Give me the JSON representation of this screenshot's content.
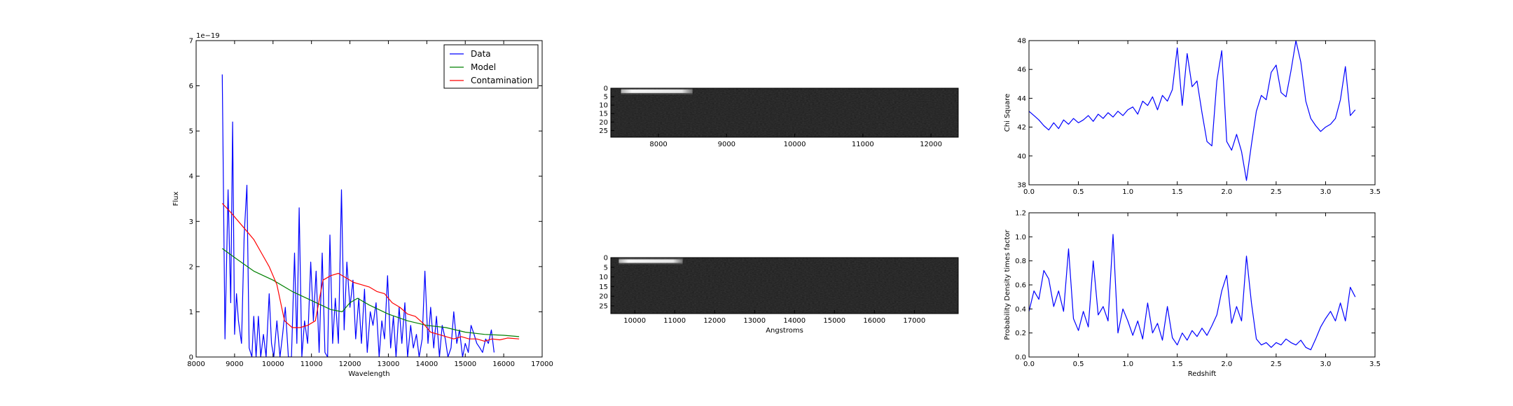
{
  "colors": {
    "data": "#0000ff",
    "model": "#008000",
    "contamination": "#ff0000",
    "axis": "#000000"
  },
  "chart_data": [
    {
      "id": "spectrum",
      "type": "line",
      "xlabel": "Wavelength",
      "ylabel": "Flux",
      "offset_text": "1e−19",
      "xlim": [
        8000,
        17000
      ],
      "ylim": [
        0,
        7
      ],
      "xticks": [
        8000,
        9000,
        10000,
        11000,
        12000,
        13000,
        14000,
        15000,
        16000,
        17000
      ],
      "yticks": [
        0,
        1,
        2,
        3,
        4,
        5,
        6,
        7
      ],
      "grid": false,
      "legend": {
        "position": "top-right",
        "entries": [
          "Data",
          "Model",
          "Contamination"
        ]
      },
      "series": [
        {
          "name": "Data",
          "color": "#0000ff",
          "x": [
            8680,
            8750,
            8830,
            8900,
            8950,
            9000,
            9050,
            9100,
            9180,
            9250,
            9320,
            9380,
            9450,
            9500,
            9560,
            9620,
            9680,
            9750,
            9820,
            9900,
            9960,
            10020,
            10100,
            10180,
            10250,
            10320,
            10400,
            10480,
            10560,
            10620,
            10680,
            10750,
            10820,
            10900,
            10980,
            11050,
            11120,
            11200,
            11280,
            11350,
            11420,
            11480,
            11550,
            11620,
            11700,
            11780,
            11850,
            11920,
            12000,
            12080,
            12150,
            12230,
            12300,
            12380,
            12450,
            12530,
            12600,
            12680,
            12760,
            12830,
            12900,
            12980,
            13060,
            13130,
            13200,
            13280,
            13350,
            13430,
            13500,
            13580,
            13650,
            13730,
            13800,
            13880,
            13950,
            14030,
            14100,
            14180,
            14250,
            14330,
            14400,
            14480,
            14550,
            14630,
            14700,
            14780,
            14850,
            14930,
            15000,
            15080,
            15150,
            15230,
            15300,
            15380,
            15450,
            15530,
            15600,
            15680,
            15750
          ],
          "y": [
            6.25,
            0.4,
            3.7,
            1.2,
            5.2,
            0.5,
            1.4,
            0.8,
            0.3,
            2.7,
            3.8,
            0.2,
            0.0,
            0.9,
            0.0,
            0.9,
            0.0,
            0.5,
            0.0,
            1.4,
            0.3,
            0.0,
            0.8,
            0.0,
            0.5,
            1.1,
            0.0,
            0.0,
            2.3,
            0.3,
            3.3,
            0.0,
            0.8,
            0.3,
            2.1,
            0.8,
            1.9,
            0.1,
            2.3,
            0.1,
            0.0,
            2.7,
            0.3,
            1.3,
            0.3,
            3.7,
            0.6,
            2.1,
            1.1,
            1.7,
            0.4,
            1.3,
            0.3,
            1.5,
            0.1,
            1.0,
            0.7,
            1.2,
            0.0,
            0.8,
            0.4,
            1.8,
            0.2,
            0.9,
            0.0,
            1.1,
            0.3,
            1.2,
            0.0,
            0.7,
            0.2,
            0.5,
            0.0,
            0.4,
            1.9,
            0.3,
            1.1,
            0.2,
            0.9,
            0.0,
            0.7,
            0.4,
            0.0,
            0.2,
            1.0,
            0.3,
            0.6,
            0.0,
            0.3,
            0.1,
            0.7,
            0.5,
            0.3,
            0.2,
            0.1,
            0.4,
            0.3,
            0.6,
            0.1
          ]
        },
        {
          "name": "Model",
          "color": "#008000",
          "x": [
            8680,
            9000,
            9500,
            10000,
            10500,
            11000,
            11500,
            11800,
            12000,
            12200,
            12500,
            13000,
            13500,
            14000,
            14500,
            15000,
            15500,
            16000,
            16400
          ],
          "y": [
            2.4,
            2.2,
            1.9,
            1.7,
            1.45,
            1.25,
            1.05,
            1.0,
            1.2,
            1.3,
            1.15,
            0.95,
            0.8,
            0.7,
            0.65,
            0.55,
            0.5,
            0.48,
            0.45
          ]
        },
        {
          "name": "Contamination",
          "color": "#ff0000",
          "x": [
            8680,
            8900,
            9100,
            9300,
            9500,
            9700,
            9900,
            10100,
            10300,
            10500,
            10700,
            10900,
            11100,
            11300,
            11500,
            11700,
            11900,
            12100,
            12300,
            12500,
            12700,
            12900,
            13100,
            13300,
            13500,
            13700,
            13900,
            14100,
            14300,
            14500,
            14700,
            14900,
            15100,
            15300,
            15500,
            15700,
            15900,
            16100,
            16400
          ],
          "y": [
            3.4,
            3.2,
            3.0,
            2.8,
            2.6,
            2.3,
            2.0,
            1.6,
            0.8,
            0.65,
            0.65,
            0.7,
            0.8,
            1.7,
            1.8,
            1.85,
            1.75,
            1.65,
            1.6,
            1.55,
            1.45,
            1.4,
            1.2,
            1.1,
            0.95,
            0.9,
            0.75,
            0.55,
            0.5,
            0.45,
            0.4,
            0.45,
            0.4,
            0.4,
            0.35,
            0.4,
            0.38,
            0.42,
            0.4
          ]
        }
      ]
    },
    {
      "id": "image-top",
      "type": "heatmap",
      "xlabel": "",
      "ylabel": "",
      "xlim": [
        7300,
        12400
      ],
      "ylim": [
        0,
        29
      ],
      "xticks": [
        8000,
        9000,
        10000,
        11000,
        12000
      ],
      "yticks": [
        0,
        5,
        10,
        15,
        20,
        25
      ],
      "bright_trace": {
        "row": 2,
        "x_start": 7450,
        "x_end": 8500
      }
    },
    {
      "id": "image-bottom",
      "type": "heatmap",
      "xlabel": "Angstroms",
      "ylabel": "",
      "xlim": [
        9400,
        18100
      ],
      "ylim": [
        0,
        29
      ],
      "xticks": [
        10000,
        11000,
        12000,
        13000,
        14000,
        15000,
        16000,
        17000
      ],
      "yticks": [
        0,
        5,
        10,
        15,
        20,
        25
      ],
      "bright_trace": {
        "row": 2,
        "x_start": 9600,
        "x_end": 11200
      }
    },
    {
      "id": "chi-square",
      "type": "line",
      "xlabel": "",
      "ylabel": "Chi Square",
      "xlim": [
        0,
        3.5
      ],
      "ylim": [
        38,
        48
      ],
      "xticks": [
        0.0,
        0.5,
        1.0,
        1.5,
        2.0,
        2.5,
        3.0,
        3.5
      ],
      "yticks": [
        38,
        40,
        42,
        44,
        46,
        48
      ],
      "grid": false,
      "series": [
        {
          "color": "#0000ff",
          "x": [
            0.0,
            0.05,
            0.1,
            0.15,
            0.2,
            0.25,
            0.3,
            0.35,
            0.4,
            0.45,
            0.5,
            0.55,
            0.6,
            0.65,
            0.7,
            0.75,
            0.8,
            0.85,
            0.9,
            0.95,
            1.0,
            1.05,
            1.1,
            1.15,
            1.2,
            1.25,
            1.3,
            1.35,
            1.4,
            1.45,
            1.5,
            1.55,
            1.6,
            1.65,
            1.7,
            1.75,
            1.8,
            1.85,
            1.9,
            1.95,
            2.0,
            2.05,
            2.1,
            2.15,
            2.2,
            2.25,
            2.3,
            2.35,
            2.4,
            2.45,
            2.5,
            2.55,
            2.6,
            2.65,
            2.7,
            2.75,
            2.8,
            2.85,
            2.9,
            2.95,
            3.0,
            3.05,
            3.1,
            3.15,
            3.2,
            3.25,
            3.3
          ],
          "y": [
            43.1,
            42.8,
            42.5,
            42.1,
            41.8,
            42.3,
            41.9,
            42.5,
            42.2,
            42.6,
            42.3,
            42.5,
            42.8,
            42.4,
            42.9,
            42.6,
            43.0,
            42.7,
            43.1,
            42.8,
            43.2,
            43.4,
            42.9,
            43.8,
            43.5,
            44.1,
            43.2,
            44.2,
            43.8,
            44.6,
            47.5,
            43.5,
            47.1,
            44.8,
            45.2,
            43.0,
            41.0,
            40.7,
            45.2,
            47.3,
            41.0,
            40.4,
            41.5,
            40.3,
            38.3,
            40.8,
            43.1,
            44.2,
            43.9,
            45.8,
            46.3,
            44.4,
            44.1,
            45.9,
            48.0,
            46.5,
            43.8,
            42.6,
            42.1,
            41.7,
            42.0,
            42.2,
            42.6,
            43.9,
            46.2,
            42.8,
            43.2
          ]
        }
      ]
    },
    {
      "id": "probability",
      "type": "line",
      "xlabel": "Redshift",
      "ylabel": "Probability Density times factor",
      "xlim": [
        0,
        3.5
      ],
      "ylim": [
        0,
        1.2
      ],
      "xticks": [
        0.0,
        0.5,
        1.0,
        1.5,
        2.0,
        2.5,
        3.0,
        3.5
      ],
      "yticks": [
        0.0,
        0.2,
        0.4,
        0.6,
        0.8,
        1.0,
        1.2
      ],
      "grid": false,
      "series": [
        {
          "color": "#0000ff",
          "x": [
            0.0,
            0.05,
            0.1,
            0.15,
            0.2,
            0.25,
            0.3,
            0.35,
            0.4,
            0.45,
            0.5,
            0.55,
            0.6,
            0.65,
            0.7,
            0.75,
            0.8,
            0.85,
            0.9,
            0.95,
            1.0,
            1.05,
            1.1,
            1.15,
            1.2,
            1.25,
            1.3,
            1.35,
            1.4,
            1.45,
            1.5,
            1.55,
            1.6,
            1.65,
            1.7,
            1.75,
            1.8,
            1.85,
            1.9,
            1.95,
            2.0,
            2.05,
            2.1,
            2.15,
            2.2,
            2.25,
            2.3,
            2.35,
            2.4,
            2.45,
            2.5,
            2.55,
            2.6,
            2.65,
            2.7,
            2.75,
            2.8,
            2.85,
            2.9,
            2.95,
            3.0,
            3.05,
            3.1,
            3.15,
            3.2,
            3.25,
            3.3
          ],
          "y": [
            0.38,
            0.55,
            0.48,
            0.72,
            0.65,
            0.42,
            0.55,
            0.38,
            0.9,
            0.32,
            0.22,
            0.38,
            0.25,
            0.8,
            0.35,
            0.42,
            0.3,
            1.02,
            0.2,
            0.4,
            0.3,
            0.18,
            0.3,
            0.15,
            0.45,
            0.2,
            0.28,
            0.14,
            0.42,
            0.16,
            0.1,
            0.2,
            0.14,
            0.22,
            0.17,
            0.24,
            0.18,
            0.26,
            0.35,
            0.55,
            0.68,
            0.28,
            0.42,
            0.3,
            0.84,
            0.45,
            0.15,
            0.1,
            0.12,
            0.08,
            0.12,
            0.1,
            0.15,
            0.12,
            0.1,
            0.14,
            0.08,
            0.06,
            0.15,
            0.25,
            0.32,
            0.38,
            0.3,
            0.45,
            0.3,
            0.58,
            0.5
          ]
        }
      ]
    }
  ]
}
